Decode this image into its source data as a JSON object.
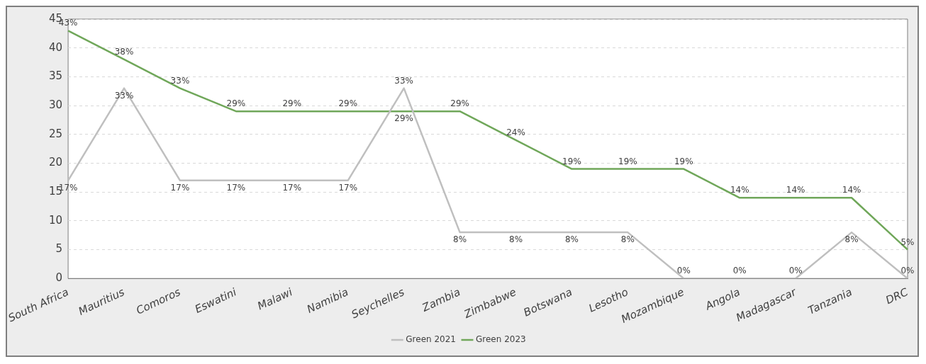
{
  "chart_data": {
    "type": "line",
    "categories": [
      "South Africa",
      "Mauritius",
      "Comoros",
      "Eswatini",
      "Malawi",
      "Namibia",
      "Seychelles",
      "Zambia",
      "Zimbabwe",
      "Botswana",
      "Lesotho",
      "Mozambique",
      "Angola",
      "Madagascar",
      "Tanzania",
      "DRC"
    ],
    "series": [
      {
        "name": "Green 2021",
        "color": "#bfbfbf",
        "values": [
          17,
          33,
          17,
          17,
          17,
          17,
          33,
          8,
          8,
          8,
          8,
          0,
          0,
          0,
          8,
          0
        ],
        "value_labels": [
          "17%",
          "33%",
          "17%",
          "17%",
          "17%",
          "17%",
          "33%",
          "8%",
          "8%",
          "8%",
          "8%",
          "0%",
          "0%",
          "0%",
          "8%",
          "0%"
        ]
      },
      {
        "name": "Green 2023",
        "color": "#70a75a",
        "values": [
          43,
          38,
          33,
          29,
          29,
          29,
          29,
          29,
          24,
          19,
          19,
          19,
          14,
          14,
          14,
          5
        ],
        "value_labels": [
          "43%",
          "38%",
          "33%",
          "29%",
          "29%",
          "29%",
          "29%",
          "29%",
          "24%",
          "19%",
          "19%",
          "19%",
          "14%",
          "14%",
          "14%",
          "5%"
        ]
      }
    ],
    "ylim": [
      0,
      45
    ],
    "yticks": [
      0,
      5,
      10,
      15,
      20,
      25,
      30,
      35,
      40,
      45
    ],
    "grid": "y",
    "legend": "bottom",
    "marker": "none",
    "line_style": "solid"
  }
}
